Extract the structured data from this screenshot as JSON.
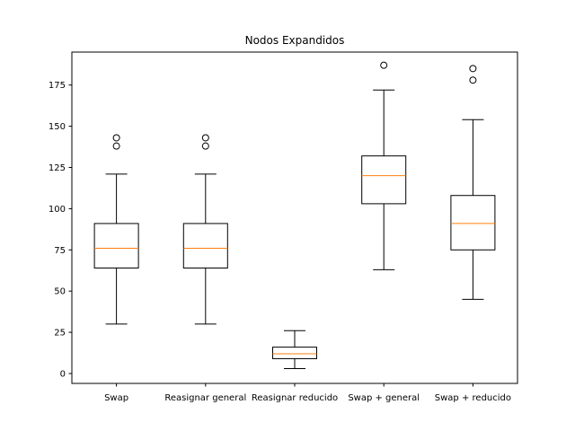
{
  "chart_data": {
    "type": "boxplot",
    "title": "Nodos Expandidos",
    "xlabel": "",
    "ylabel": "",
    "ylim": [
      -6,
      195
    ],
    "yticks": [
      0,
      25,
      50,
      75,
      100,
      125,
      150,
      175
    ],
    "grid": false,
    "categories": [
      "Swap",
      "Reasignar general",
      "Reasignar reducido",
      "Swap + general",
      "Swap + reducido"
    ],
    "boxes": [
      {
        "name": "Swap",
        "whisker_low": 30,
        "q1": 64,
        "median": 76,
        "q3": 91,
        "whisker_high": 121,
        "outliers": [
          138,
          143
        ]
      },
      {
        "name": "Reasignar general",
        "whisker_low": 30,
        "q1": 64,
        "median": 76,
        "q3": 91,
        "whisker_high": 121,
        "outliers": [
          138,
          143
        ]
      },
      {
        "name": "Reasignar reducido",
        "whisker_low": 3,
        "q1": 9,
        "median": 12,
        "q3": 16,
        "whisker_high": 26,
        "outliers": []
      },
      {
        "name": "Swap + general",
        "whisker_low": 63,
        "q1": 103,
        "median": 120,
        "q3": 132,
        "whisker_high": 172,
        "outliers": [
          187
        ]
      },
      {
        "name": "Swap + reducido",
        "whisker_low": 45,
        "q1": 75,
        "median": 91,
        "q3": 108,
        "whisker_high": 154,
        "outliers": [
          178,
          185
        ]
      }
    ],
    "colors": {
      "box": "#000000",
      "median": "#ff7f0e",
      "outlier": "#000000"
    }
  }
}
